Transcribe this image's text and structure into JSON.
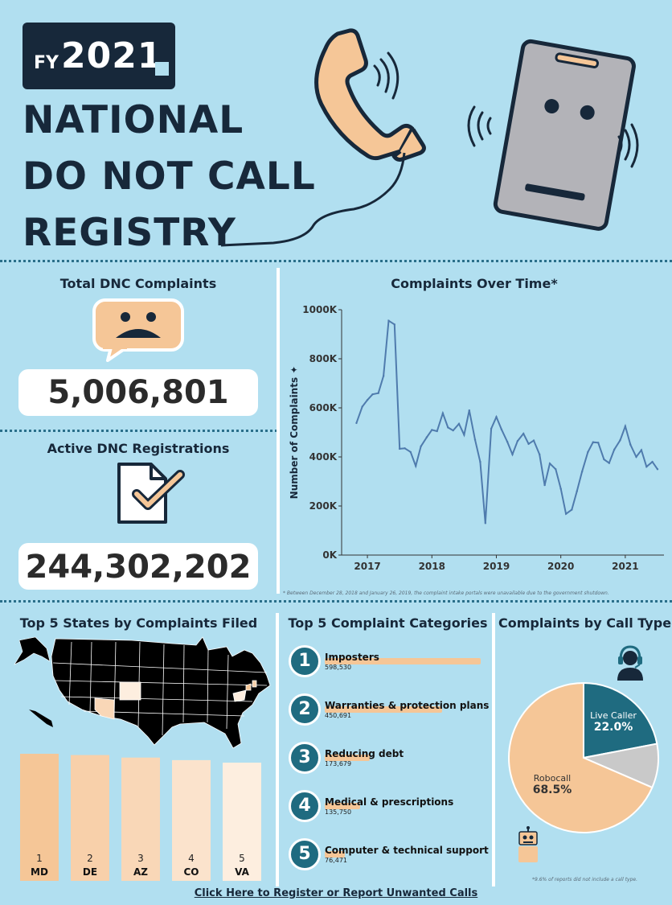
{
  "header": {
    "fy_label": "FY",
    "fy_year": "2021",
    "title_lines": [
      "NATIONAL",
      "DO NOT CALL",
      "REGISTRY"
    ]
  },
  "kpis": {
    "complaints_title": "Total DNC Complaints",
    "complaints_value": "5,006,801",
    "registrations_title": "Active DNC Registrations",
    "registrations_value": "244,302,202"
  },
  "colors": {
    "background": "#b1dff0",
    "navy": "#17283a",
    "peach": "#f5c697",
    "teal": "#1f6b80",
    "line": "#4f7bad",
    "grey": "#c9c9c9"
  },
  "icons": [
    "phone-handset-icon",
    "smartphone-icon",
    "sad-speech-bubble-icon",
    "checked-document-icon",
    "us-map-icon",
    "headset-operator-icon",
    "robot-icon"
  ],
  "sections": {
    "states_title": "Top 5 States by Complaints Filed",
    "categories_title": "Top 5 Complaint Categories",
    "call_type_title": "Complaints by Call Type",
    "timeseries_footnote": "* Between December 28, 2018 and January 26, 2019, the complaint intake portals were unavailable due to the government shutdown.",
    "call_type_footnote": "*9.6% of reports did not include a call type."
  },
  "link": {
    "label": "Click Here to Register or Report Unwanted Calls"
  },
  "chart_data": [
    {
      "type": "line",
      "title": "Complaints Over Time*",
      "ylabel": "Number of Complaints",
      "ylabel_marker": "✦",
      "xticks": [
        "2017",
        "2018",
        "2019",
        "2020",
        "2021"
      ],
      "yticks": [
        "0K",
        "200K",
        "400K",
        "600K",
        "800K",
        "1000K"
      ],
      "ylim": [
        0,
        1000000
      ],
      "xlim": [
        2016.6,
        2021.6
      ],
      "grid": false,
      "x": [
        2016.83,
        2016.92,
        2017.0,
        2017.08,
        2017.17,
        2017.25,
        2017.33,
        2017.42,
        2017.5,
        2017.58,
        2017.67,
        2017.75,
        2017.83,
        2017.92,
        2018.0,
        2018.08,
        2018.17,
        2018.25,
        2018.33,
        2018.42,
        2018.5,
        2018.58,
        2018.67,
        2018.75,
        2018.83,
        2018.92,
        2019.0,
        2019.08,
        2019.17,
        2019.25,
        2019.33,
        2019.42,
        2019.5,
        2019.58,
        2019.67,
        2019.75,
        2019.83,
        2019.92,
        2020.0,
        2020.08,
        2020.17,
        2020.25,
        2020.33,
        2020.42,
        2020.5,
        2020.58,
        2020.67,
        2020.75,
        2020.83,
        2020.92,
        2021.0,
        2021.08,
        2021.17,
        2021.25,
        2021.33,
        2021.42,
        2021.5
      ],
      "y": [
        538000,
        605000,
        632000,
        655000,
        660000,
        730000,
        955000,
        940000,
        433000,
        435000,
        420000,
        363000,
        443000,
        480000,
        510000,
        505000,
        578000,
        520000,
        508000,
        535000,
        490000,
        590000,
        470000,
        380000,
        130000,
        515000,
        563000,
        512000,
        462000,
        410000,
        465000,
        495000,
        453000,
        467000,
        410000,
        285000,
        373000,
        350000,
        270000,
        168000,
        185000,
        260000,
        340000,
        420000,
        460000,
        458000,
        390000,
        375000,
        430000,
        468000,
        525000,
        450000,
        400000,
        428000,
        360000,
        380000,
        350000
      ]
    },
    {
      "type": "bar",
      "title": "Top 5 Complaint Categories",
      "categories": [
        "Imposters",
        "Warranties & protection plans",
        "Reducing debt",
        "Medical & prescriptions",
        "Computer & technical support"
      ],
      "values": [
        598530,
        450691,
        173679,
        135750,
        76471
      ],
      "value_labels": [
        "598,530",
        "450,691",
        "173,679",
        "135,750",
        "76,471"
      ],
      "ranks": [
        "1",
        "2",
        "3",
        "4",
        "5"
      ],
      "orientation": "horizontal"
    },
    {
      "type": "bar",
      "title": "Top 5 States by Complaints Filed",
      "categories": [
        "MD",
        "DE",
        "AZ",
        "CO",
        "VA"
      ],
      "ranks": [
        "1",
        "2",
        "3",
        "4",
        "5"
      ],
      "values": [
        1.0,
        0.99,
        0.97,
        0.95,
        0.93
      ],
      "value_unit": "relative to MD",
      "colors": [
        "#f5c697",
        "#f8d0aa",
        "#f9d7b7",
        "#fbe3cc",
        "#fdeedf"
      ]
    },
    {
      "type": "pie",
      "title": "Complaints by Call Type",
      "slices": [
        {
          "label": "Robocall",
          "pct_label": "68.5%",
          "value": 68.5,
          "color": "#f5c697"
        },
        {
          "label": "Live Caller",
          "pct_label": "22.0%",
          "value": 22.0,
          "color": "#1f6b80"
        },
        {
          "label": "",
          "pct_label": "",
          "value": 9.5,
          "color": "#c9c9c9"
        }
      ]
    }
  ]
}
